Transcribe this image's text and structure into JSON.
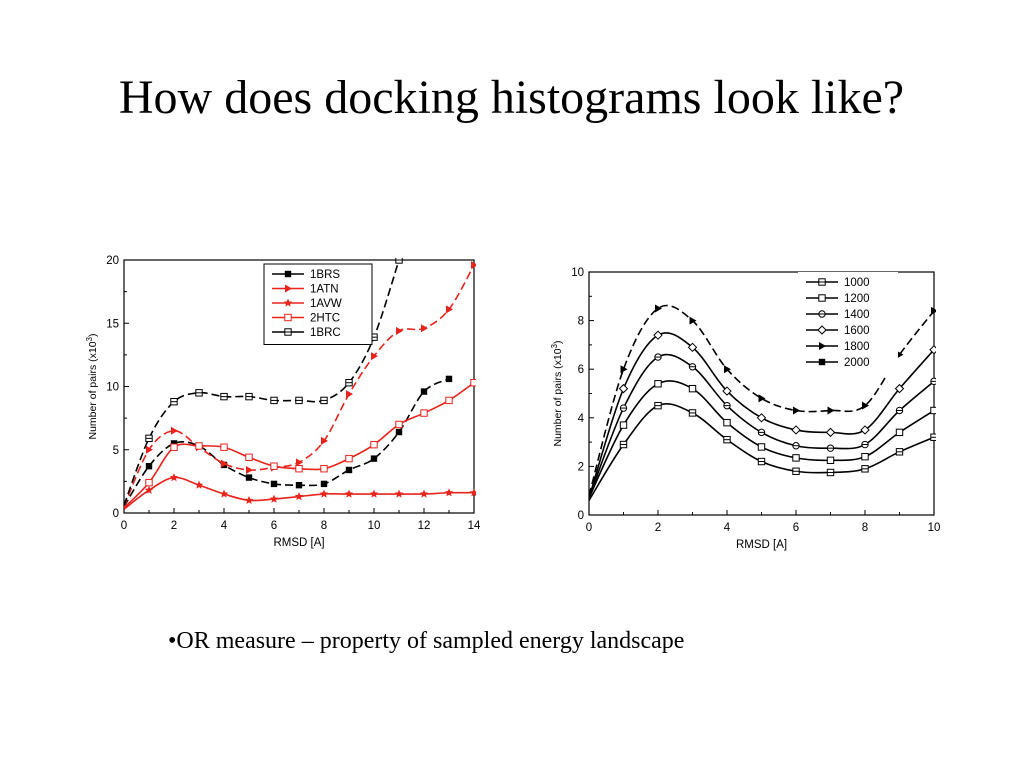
{
  "slide": {
    "title": "How does docking histograms look like?",
    "bullet": "•OR measure – property of sampled energy landscape"
  },
  "chart_data": [
    {
      "type": "line",
      "xlabel": "RMSD [A]",
      "ylabel": "Number of pairs (x10",
      "ylabel_sup": "3",
      "ylabel_end": ")",
      "xlim": [
        0,
        14
      ],
      "ylim": [
        0,
        20
      ],
      "xticks": [
        0,
        2,
        4,
        6,
        8,
        10,
        12,
        14
      ],
      "yticks": [
        0,
        5,
        10,
        15,
        20
      ],
      "grid": false,
      "legend_position": "top-right",
      "series": [
        {
          "name": "1BRS",
          "color": "#000000",
          "marker": "filled-square",
          "dash": "8,4",
          "x": [
            0,
            1,
            2,
            3,
            4,
            5,
            6,
            7,
            8,
            9,
            10,
            11,
            12,
            13
          ],
          "y": [
            0.5,
            3.7,
            5.5,
            5.3,
            3.8,
            2.8,
            2.3,
            2.2,
            2.3,
            3.4,
            4.3,
            6.4,
            9.6,
            10.6
          ]
        },
        {
          "name": "1ATN",
          "color": "#e8231b",
          "marker": "triangle-right",
          "dash": "8,4",
          "x": [
            0,
            1,
            2,
            3,
            4,
            5,
            6,
            7,
            8,
            9,
            10,
            11,
            12,
            13,
            14
          ],
          "y": [
            0.5,
            5.0,
            6.5,
            5.2,
            3.9,
            3.4,
            3.6,
            4.0,
            5.7,
            9.4,
            12.4,
            14.4,
            14.6,
            16.1,
            19.6
          ]
        },
        {
          "name": "1AVW",
          "color": "#e8231b",
          "marker": "star",
          "dash": "",
          "x": [
            0,
            1,
            2,
            3,
            4,
            5,
            6,
            7,
            8,
            9,
            10,
            11,
            12,
            13,
            14
          ],
          "y": [
            0.3,
            1.8,
            2.8,
            2.2,
            1.5,
            1.0,
            1.1,
            1.3,
            1.5,
            1.5,
            1.5,
            1.5,
            1.5,
            1.6,
            1.6
          ]
        },
        {
          "name": "2HTC",
          "color": "#e8231b",
          "marker": "open-square",
          "dash": "",
          "x": [
            0,
            1,
            2,
            3,
            4,
            5,
            6,
            7,
            8,
            9,
            10,
            11,
            12,
            13,
            14
          ],
          "y": [
            0.4,
            2.4,
            5.2,
            5.3,
            5.2,
            4.4,
            3.7,
            3.5,
            3.5,
            4.3,
            5.4,
            7.0,
            7.9,
            8.9,
            10.3
          ]
        },
        {
          "name": "1BRC",
          "color": "#000000",
          "marker": "crossed-square",
          "dash": "8,4",
          "x": [
            0,
            1,
            2,
            3,
            4,
            5,
            6,
            7,
            8,
            9,
            10,
            11
          ],
          "y": [
            0.6,
            5.9,
            8.8,
            9.5,
            9.2,
            9.2,
            8.9,
            8.9,
            8.9,
            10.3,
            13.9,
            20.0
          ]
        }
      ]
    },
    {
      "type": "line",
      "xlabel": "RMSD [A]",
      "ylabel": "Number of pairs (x10",
      "ylabel_sup": "3",
      "ylabel_end": ")",
      "xlim": [
        0,
        10
      ],
      "ylim": [
        0,
        10
      ],
      "xticks": [
        0,
        2,
        4,
        6,
        8,
        10
      ],
      "yticks": [
        0,
        2,
        4,
        6,
        8,
        10
      ],
      "grid": false,
      "legend_position": "top-right",
      "series": [
        {
          "name": "1000",
          "color": "#000000",
          "marker": "crossed-square",
          "dash": "",
          "x": [
            0,
            1,
            2,
            3,
            4,
            5,
            6,
            7,
            8,
            9,
            10
          ],
          "y": [
            0.6,
            2.9,
            4.5,
            4.2,
            3.1,
            2.2,
            1.8,
            1.75,
            1.9,
            2.6,
            3.2
          ]
        },
        {
          "name": "1200",
          "color": "#000000",
          "marker": "open-square",
          "dash": "",
          "x": [
            0,
            1,
            2,
            3,
            4,
            5,
            6,
            7,
            8,
            9,
            10
          ],
          "y": [
            0.7,
            3.7,
            5.4,
            5.2,
            3.8,
            2.8,
            2.35,
            2.25,
            2.4,
            3.4,
            4.3
          ]
        },
        {
          "name": "1400",
          "color": "#000000",
          "marker": "crossed-circle",
          "dash": "",
          "x": [
            0,
            1,
            2,
            3,
            4,
            5,
            6,
            7,
            8,
            9,
            10
          ],
          "y": [
            0.7,
            4.4,
            6.5,
            6.1,
            4.5,
            3.4,
            2.85,
            2.75,
            2.9,
            4.3,
            5.5
          ]
        },
        {
          "name": "1600",
          "color": "#000000",
          "marker": "open-diamond",
          "dash": "",
          "x": [
            0,
            1,
            2,
            3,
            4,
            5,
            6,
            7,
            8,
            9,
            10
          ],
          "y": [
            0.7,
            5.2,
            7.4,
            6.9,
            5.1,
            4.0,
            3.5,
            3.4,
            3.5,
            5.2,
            6.8
          ]
        },
        {
          "name": "1800",
          "color": "#000000",
          "marker": "triangle-right",
          "dash": "8,4",
          "x": [
            0,
            1,
            2,
            3,
            4,
            5,
            6,
            7,
            8,
            9,
            10
          ],
          "y": [
            0.8,
            6.0,
            8.5,
            8.0,
            6.0,
            4.8,
            4.3,
            4.3,
            4.5,
            6.6,
            8.4
          ]
        },
        {
          "name": "2000",
          "color": "#000000",
          "marker": "filled-square",
          "dash": "",
          "x": [],
          "y": []
        }
      ]
    }
  ]
}
